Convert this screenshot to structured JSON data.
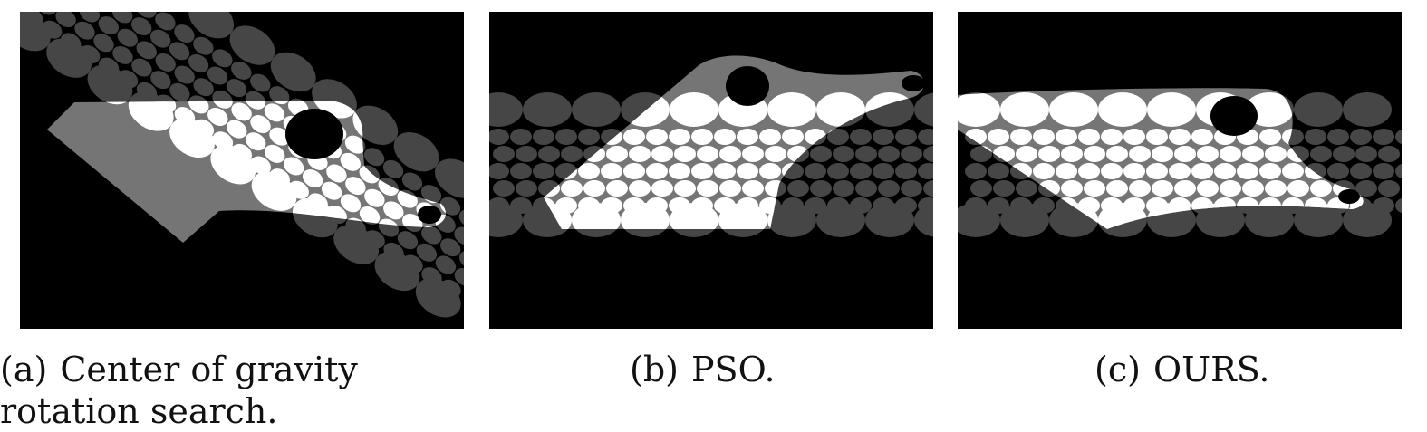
{
  "figure": {
    "panels": [
      {
        "id": "a",
        "tag": "(a)",
        "caption": "Center of gravity rotation search."
      },
      {
        "id": "b",
        "tag": "(b)",
        "caption": "PSO."
      },
      {
        "id": "c",
        "tag": "(c)",
        "caption": "OURS."
      }
    ],
    "colors": {
      "background": "#000000",
      "sheet": "#8a8a8a",
      "circle_dark": "#464646",
      "circle_on_sheet": "#ffffff"
    }
  }
}
